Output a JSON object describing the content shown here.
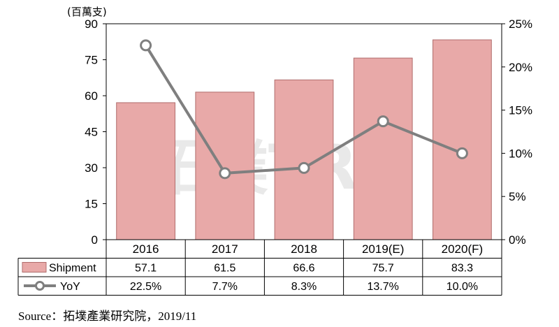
{
  "chart_data": {
    "type": "bar",
    "categories": [
      "2016",
      "2017",
      "2018",
      "2019(E)",
      "2020(F)"
    ],
    "series": [
      {
        "name": "Shipment",
        "type": "bar",
        "values": [
          57.1,
          61.5,
          66.6,
          75.7,
          83.3
        ],
        "labels": [
          "57.1",
          "61.5",
          "66.6",
          "75.7",
          "83.3"
        ],
        "color": "#e8a9a8",
        "axis": "left"
      },
      {
        "name": "YoY",
        "type": "line",
        "values": [
          22.5,
          7.7,
          8.3,
          13.7,
          10.0
        ],
        "labels": [
          "22.5%",
          "7.7%",
          "8.3%",
          "13.7%",
          "10.0%"
        ],
        "color": "#7f7f7f",
        "axis": "right"
      }
    ],
    "ylabel": "(百萬支)",
    "ylim": [
      0,
      90
    ],
    "yticks": [
      "0",
      "15",
      "30",
      "45",
      "60",
      "75",
      "90"
    ],
    "y2lim": [
      0,
      25
    ],
    "y2ticks": [
      "0%",
      "5%",
      "10%",
      "15%",
      "20%",
      "25%"
    ],
    "data_table": true,
    "grid": false
  },
  "watermark": "拓墣TRi",
  "source_text": "Source：拓墣產業研究院，2019/11"
}
